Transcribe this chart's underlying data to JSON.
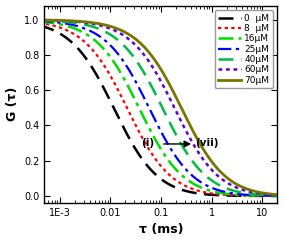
{
  "title": "",
  "xlabel": "τ (ms)",
  "ylabel": "G (τ)",
  "xlim": [
    0.0005,
    20
  ],
  "ylim": [
    -0.04,
    1.08
  ],
  "series": [
    {
      "label": "0  μM",
      "color": "#000000",
      "tau_c": 0.012,
      "n": 1.05
    },
    {
      "label": "8  μM",
      "color": "#ff0000",
      "tau_c": 0.022,
      "n": 1.05
    },
    {
      "label": "16μM",
      "color": "#00dd00",
      "tau_c": 0.038,
      "n": 1.05
    },
    {
      "label": "25μM",
      "color": "#0000ff",
      "tau_c": 0.06,
      "n": 1.05
    },
    {
      "label": "40μM",
      "color": "#00bb44",
      "tau_c": 0.11,
      "n": 1.05
    },
    {
      "label": "60μM",
      "color": "#6600cc",
      "tau_c": 0.19,
      "n": 1.05
    },
    {
      "label": "70μM",
      "color": "#777700",
      "tau_c": 0.26,
      "n": 1.05
    }
  ],
  "background_color": "#ffffff",
  "tick_fontsize": 7,
  "label_fontsize": 9,
  "legend_fontsize": 6.5
}
